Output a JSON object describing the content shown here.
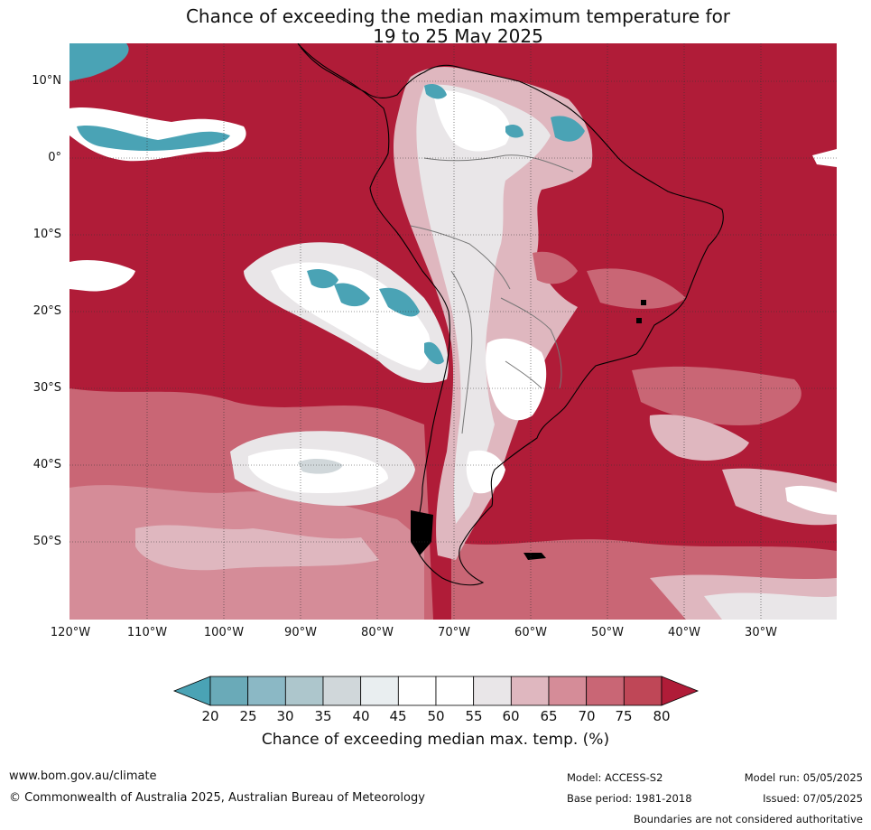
{
  "title": {
    "line1": "Chance of exceeding the median maximum temperature for",
    "line2": "19 to 25 May 2025"
  },
  "axes": {
    "lat_labels": [
      "10°N",
      "0°",
      "10°S",
      "20°S",
      "30°S",
      "40°S",
      "50°S"
    ],
    "lon_labels": [
      "120°W",
      "110°W",
      "100°W",
      "90°W",
      "80°W",
      "70°W",
      "60°W",
      "50°W",
      "40°W",
      "30°W"
    ]
  },
  "colorbar": {
    "ticks": [
      "20",
      "25",
      "30",
      "35",
      "40",
      "45",
      "50",
      "55",
      "60",
      "65",
      "70",
      "75",
      "80"
    ],
    "colors": [
      "#4aa3b5",
      "#6aaab8",
      "#8bb8c5",
      "#adc6cc",
      "#d0d7da",
      "#e9eef0",
      "#ffffff",
      "#ffffff",
      "#e9e6e8",
      "#dfb7bf",
      "#d58c98",
      "#c96675",
      "#bf4757",
      "#b01c38"
    ],
    "label": "Chance of exceeding median max. temp. (%)"
  },
  "footer": {
    "url": "www.bom.gov.au/climate",
    "copyright": "© Commonwealth of Australia 2025, Australian Bureau of Meteorology",
    "model": "Model: ACCESS-S2",
    "base_period": "Base period: 1981-2018",
    "model_run": "Model run: 05/05/2025",
    "issued": "Issued: 07/05/2025",
    "disclaimer": "Boundaries are not considered authoritative"
  }
}
